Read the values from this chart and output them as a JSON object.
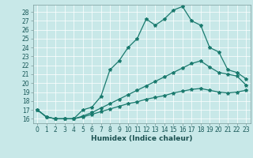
{
  "xlabel": "Humidex (Indice chaleur)",
  "background_color": "#c8e8e8",
  "grid_color": "#ffffff",
  "line_color": "#1a7a6e",
  "xlim": [
    -0.5,
    23.5
  ],
  "ylim": [
    15.5,
    28.8
  ],
  "xticks": [
    0,
    1,
    2,
    3,
    4,
    5,
    6,
    7,
    8,
    9,
    10,
    11,
    12,
    13,
    14,
    15,
    16,
    17,
    18,
    19,
    20,
    21,
    22,
    23
  ],
  "yticks": [
    16,
    17,
    18,
    19,
    20,
    21,
    22,
    23,
    24,
    25,
    26,
    27,
    28
  ],
  "line1_x": [
    0,
    1,
    2,
    3,
    4,
    5,
    6,
    7,
    8,
    9,
    10,
    11,
    12,
    13,
    14,
    15,
    16,
    17,
    18,
    19,
    20,
    21,
    22,
    23
  ],
  "line1_y": [
    17.0,
    16.2,
    16.0,
    16.0,
    16.0,
    17.0,
    17.3,
    18.5,
    21.5,
    22.5,
    24.0,
    25.0,
    27.2,
    26.5,
    27.2,
    28.2,
    28.6,
    27.0,
    26.5,
    24.0,
    23.5,
    21.5,
    21.2,
    20.5
  ],
  "line2_x": [
    0,
    1,
    2,
    3,
    4,
    5,
    6,
    7,
    8,
    9,
    10,
    11,
    12,
    13,
    14,
    15,
    16,
    17,
    18,
    19,
    20,
    21,
    22,
    23
  ],
  "line2_y": [
    17.0,
    16.2,
    16.0,
    16.0,
    16.0,
    16.3,
    16.7,
    17.2,
    17.7,
    18.2,
    18.7,
    19.2,
    19.7,
    20.2,
    20.7,
    21.2,
    21.7,
    22.2,
    22.5,
    21.8,
    21.2,
    21.0,
    20.8,
    19.8
  ],
  "line3_x": [
    0,
    1,
    2,
    3,
    4,
    5,
    6,
    7,
    8,
    9,
    10,
    11,
    12,
    13,
    14,
    15,
    16,
    17,
    18,
    19,
    20,
    21,
    22,
    23
  ],
  "line3_y": [
    17.0,
    16.2,
    16.0,
    16.0,
    16.0,
    16.2,
    16.5,
    16.8,
    17.1,
    17.4,
    17.7,
    17.9,
    18.2,
    18.4,
    18.6,
    18.9,
    19.1,
    19.3,
    19.4,
    19.2,
    19.0,
    18.9,
    19.0,
    19.2
  ],
  "tick_fontsize": 5.5,
  "xlabel_fontsize": 6.5,
  "spine_color": "#7a9a9a"
}
